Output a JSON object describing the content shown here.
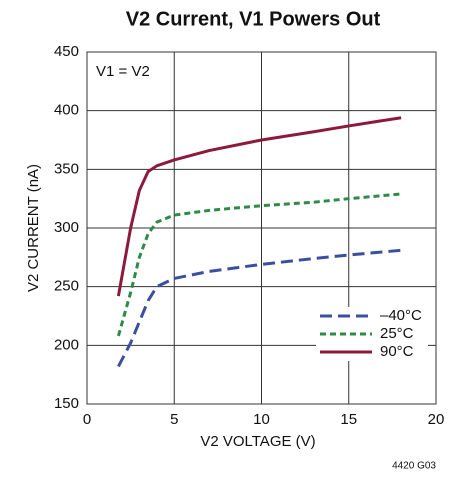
{
  "chart_data": {
    "type": "line",
    "title": "V2 Current, V1 Powers Out",
    "x_label": "V2 VOLTAGE (V)",
    "y_label": "V2 CURRENT (nA)",
    "annotation": "V1 = V2",
    "footnote": "4420 G03",
    "x": [
      1.8,
      2.5,
      3,
      3.5,
      4,
      5,
      7,
      10,
      13,
      15,
      18
    ],
    "series": [
      {
        "name": "–40°C",
        "color": "#3b4fa0",
        "dash": "12,6",
        "values": [
          182,
          202,
          220,
          238,
          250,
          257,
          263,
          269,
          274,
          277,
          281
        ]
      },
      {
        "name": "25°C",
        "color": "#2e8b47",
        "dash": "6,4",
        "values": [
          208,
          245,
          275,
          295,
          305,
          311,
          315,
          319,
          322,
          325,
          329
        ]
      },
      {
        "name": "90°C",
        "color": "#8b1a3c",
        "dash": "none",
        "values": [
          242,
          300,
          332,
          348,
          353,
          358,
          366,
          375,
          382,
          387,
          394
        ]
      }
    ],
    "xlim": [
      0,
      20
    ],
    "xticks": [
      0,
      5,
      10,
      15,
      20
    ],
    "ylim": [
      150,
      450
    ],
    "yticks": [
      150,
      200,
      250,
      300,
      350,
      400,
      450
    ],
    "grid": true,
    "legend": "lower right"
  }
}
